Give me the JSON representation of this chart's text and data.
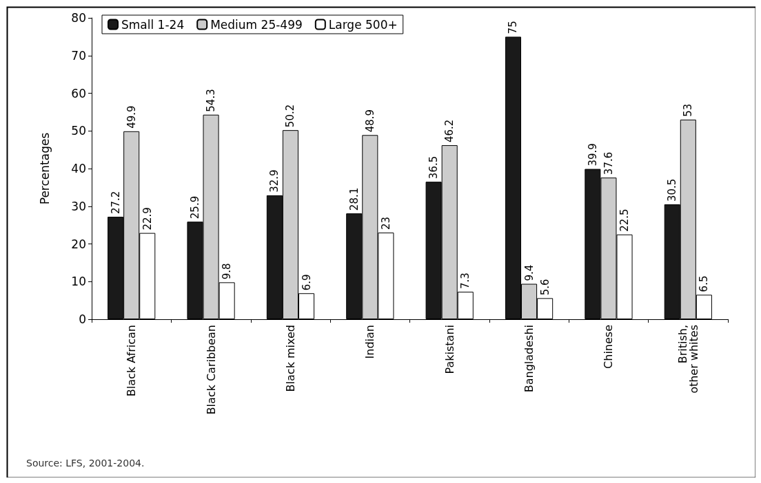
{
  "chart_data": {
    "type": "bar",
    "ylabel": "Percentages",
    "categories": [
      "Black African",
      "Black Caribbean",
      "Black mixed",
      "Indian",
      "Pakistani",
      "Bangladeshi",
      "Chinese",
      "British, other whites"
    ],
    "series": [
      {
        "name": "Small 1-24",
        "color": "#1a1a1a",
        "values": [
          27.2,
          25.9,
          32.9,
          28.1,
          36.5,
          75,
          39.9,
          30.5
        ]
      },
      {
        "name": "Medium 25-499",
        "color": "#cccccc",
        "values": [
          49.9,
          54.3,
          50.2,
          48.9,
          46.2,
          9.4,
          37.6,
          53
        ]
      },
      {
        "name": "Large 500+",
        "color": "#ffffff",
        "values": [
          22.9,
          9.8,
          6.9,
          23,
          7.3,
          5.6,
          22.5,
          6.5
        ]
      }
    ],
    "ylim": [
      0,
      80
    ],
    "yticks": [
      0,
      10,
      20,
      30,
      40,
      50,
      60,
      70,
      80
    ],
    "data_labels": true,
    "grid": false,
    "legend": "top left",
    "annotations": [
      "Source: LFS, 2001-2004."
    ]
  }
}
